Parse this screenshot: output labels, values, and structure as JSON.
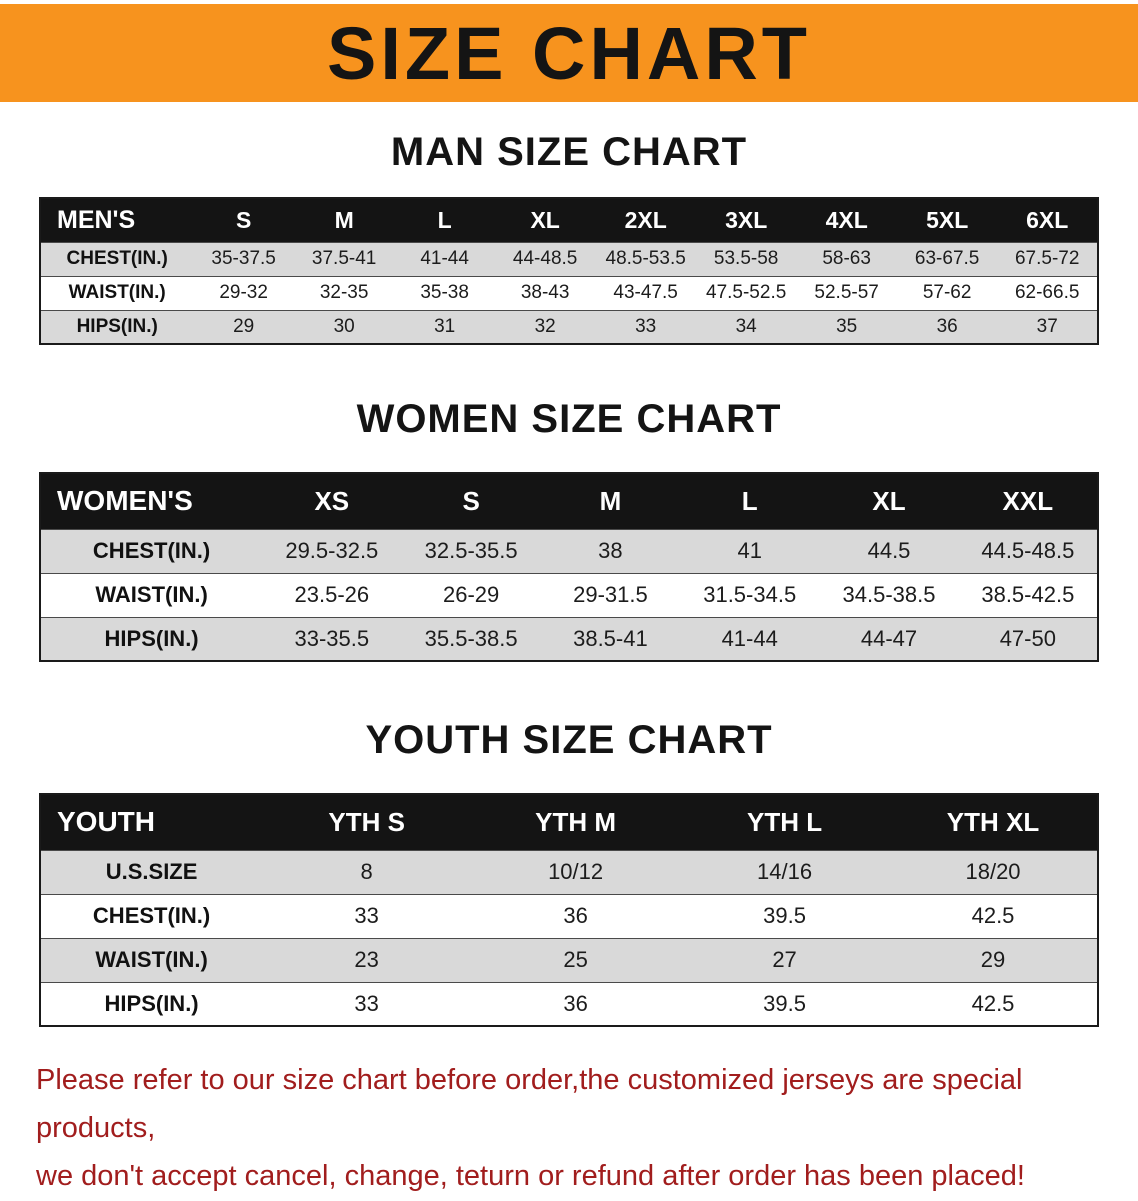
{
  "banner": {
    "title": "SIZE CHART"
  },
  "sections": [
    {
      "heading": "MAN SIZE CHART",
      "table": {
        "header": [
          "MEN'S",
          "S",
          "M",
          "L",
          "XL",
          "2XL",
          "3XL",
          "4XL",
          "5XL",
          "6XL"
        ],
        "rows": [
          [
            "CHEST(IN.)",
            "35-37.5",
            "37.5-41",
            "41-44",
            "44-48.5",
            "48.5-53.5",
            "53.5-58",
            "58-63",
            "63-67.5",
            "67.5-72"
          ],
          [
            "WAIST(IN.)",
            "29-32",
            "32-35",
            "35-38",
            "38-43",
            "43-47.5",
            "47.5-52.5",
            "52.5-57",
            "57-62",
            "62-66.5"
          ],
          [
            "HIPS(IN.)",
            "29",
            "30",
            "31",
            "32",
            "33",
            "34",
            "35",
            "36",
            "37"
          ]
        ]
      }
    },
    {
      "heading": "WOMEN SIZE CHART",
      "table": {
        "header": [
          "WOMEN'S",
          "XS",
          "S",
          "M",
          "L",
          "XL",
          "XXL"
        ],
        "rows": [
          [
            "CHEST(IN.)",
            "29.5-32.5",
            "32.5-35.5",
            "38",
            "41",
            "44.5",
            "44.5-48.5"
          ],
          [
            "WAIST(IN.)",
            "23.5-26",
            "26-29",
            "29-31.5",
            "31.5-34.5",
            "34.5-38.5",
            "38.5-42.5"
          ],
          [
            "HIPS(IN.)",
            "33-35.5",
            "35.5-38.5",
            "38.5-41",
            "41-44",
            "44-47",
            "47-50"
          ]
        ]
      }
    },
    {
      "heading": "YOUTH SIZE CHART",
      "table": {
        "header": [
          "YOUTH",
          "YTH S",
          "YTH M",
          "YTH L",
          "YTH XL"
        ],
        "rows": [
          [
            "U.S.SIZE",
            "8",
            "10/12",
            "14/16",
            "18/20"
          ],
          [
            "CHEST(IN.)",
            "33",
            "36",
            "39.5",
            "42.5"
          ],
          [
            "WAIST(IN.)",
            "23",
            "25",
            "27",
            "29"
          ],
          [
            "HIPS(IN.)",
            "33",
            "36",
            "39.5",
            "42.5"
          ]
        ]
      }
    }
  ],
  "footer": {
    "line1": "Please refer to our size chart before order,the customized jerseys are special products,",
    "line2": "we don't accept cancel, change, teturn or refund after order has been placed!"
  },
  "colors": {
    "banner_bg": "#F7931E",
    "table_header_bg": "#141414",
    "row_stripe": "#d9d9d9",
    "notice_text": "#a11d1d"
  }
}
